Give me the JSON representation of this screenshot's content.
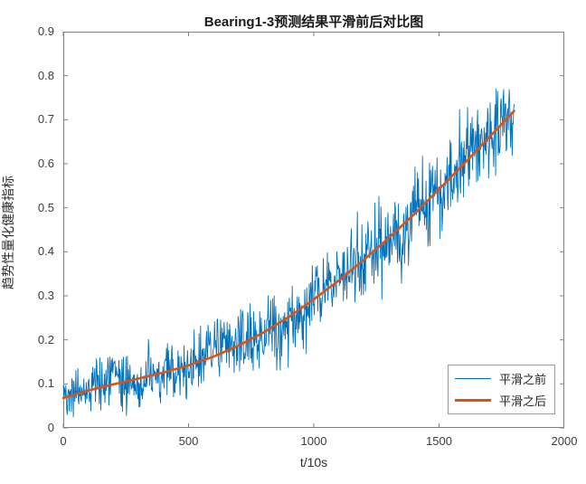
{
  "chart_data": {
    "type": "line",
    "title": "Bearing1-3预测结果平滑前后对比图",
    "xlabel": "t/10s",
    "ylabel": "趋势性量化健康指标",
    "xlim": [
      0,
      2000
    ],
    "ylim": [
      0,
      0.9
    ],
    "x_ticks": [
      0,
      500,
      1000,
      1500,
      2000
    ],
    "y_ticks": [
      0,
      0.1,
      0.2,
      0.3,
      0.4,
      0.5,
      0.6,
      0.7,
      0.8,
      0.9
    ],
    "grid": false,
    "legend_position": "lower right",
    "axis_box": true,
    "axis_color": "#808080",
    "series": [
      {
        "name": "平滑之前",
        "role": "raw-noisy",
        "color": "#0072BD",
        "line_width": 0.9,
        "x_range": [
          0,
          1800
        ],
        "x_step": 2,
        "seed": 42,
        "noise_amplitude_start": 0.032,
        "noise_amplitude_end": 0.062,
        "approx_min": 0.03,
        "approx_max": 0.835
      },
      {
        "name": "平滑之后",
        "role": "smoothed",
        "color": "#D95319",
        "line_width": 2.6,
        "x": [
          0,
          100,
          200,
          300,
          400,
          500,
          600,
          700,
          800,
          900,
          1000,
          1100,
          1200,
          1300,
          1400,
          1500,
          1600,
          1700,
          1800
        ],
        "values": [
          0.068,
          0.085,
          0.099,
          0.112,
          0.126,
          0.142,
          0.162,
          0.187,
          0.217,
          0.252,
          0.292,
          0.335,
          0.382,
          0.432,
          0.485,
          0.542,
          0.6,
          0.66,
          0.72
        ]
      }
    ]
  }
}
